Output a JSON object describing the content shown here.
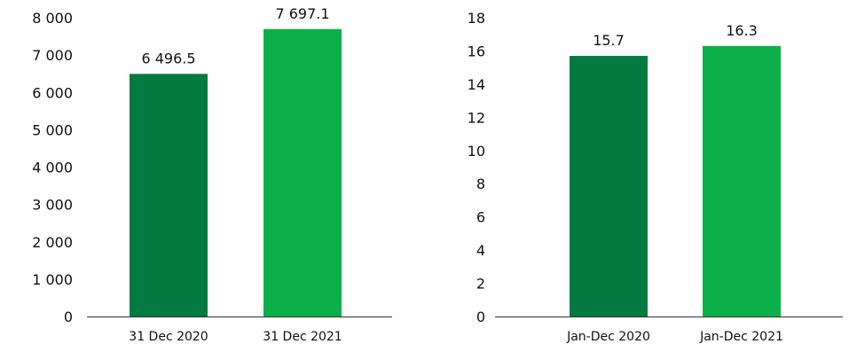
{
  "chart_data": [
    {
      "type": "bar",
      "categories": [
        "31 Dec 2020",
        "31 Dec 2021"
      ],
      "values": [
        6496.5,
        7697.1
      ],
      "value_labels": [
        "6 496.5",
        "7 697.1"
      ],
      "ylim": [
        0,
        8000
      ],
      "yticks": [
        0,
        1000,
        2000,
        3000,
        4000,
        5000,
        6000,
        7000,
        8000
      ],
      "ytick_labels": [
        "0",
        "1 000",
        "2 000",
        "3 000",
        "4 000",
        "5 000",
        "6 000",
        "7 000",
        "8 000"
      ],
      "bar_colors": [
        "#037a3f",
        "#0bb04b"
      ],
      "grid": false
    },
    {
      "type": "bar",
      "categories": [
        "Jan-Dec 2020",
        "Jan-Dec 2021"
      ],
      "values": [
        15.7,
        16.3
      ],
      "value_labels": [
        "15.7",
        "16.3"
      ],
      "ylim": [
        0,
        18
      ],
      "yticks": [
        0,
        2,
        4,
        6,
        8,
        10,
        12,
        14,
        16,
        18
      ],
      "ytick_labels": [
        "0",
        "2",
        "4",
        "6",
        "8",
        "10",
        "12",
        "14",
        "16",
        "18"
      ],
      "bar_colors": [
        "#037a3f",
        "#0bb04b"
      ],
      "grid": false
    }
  ]
}
